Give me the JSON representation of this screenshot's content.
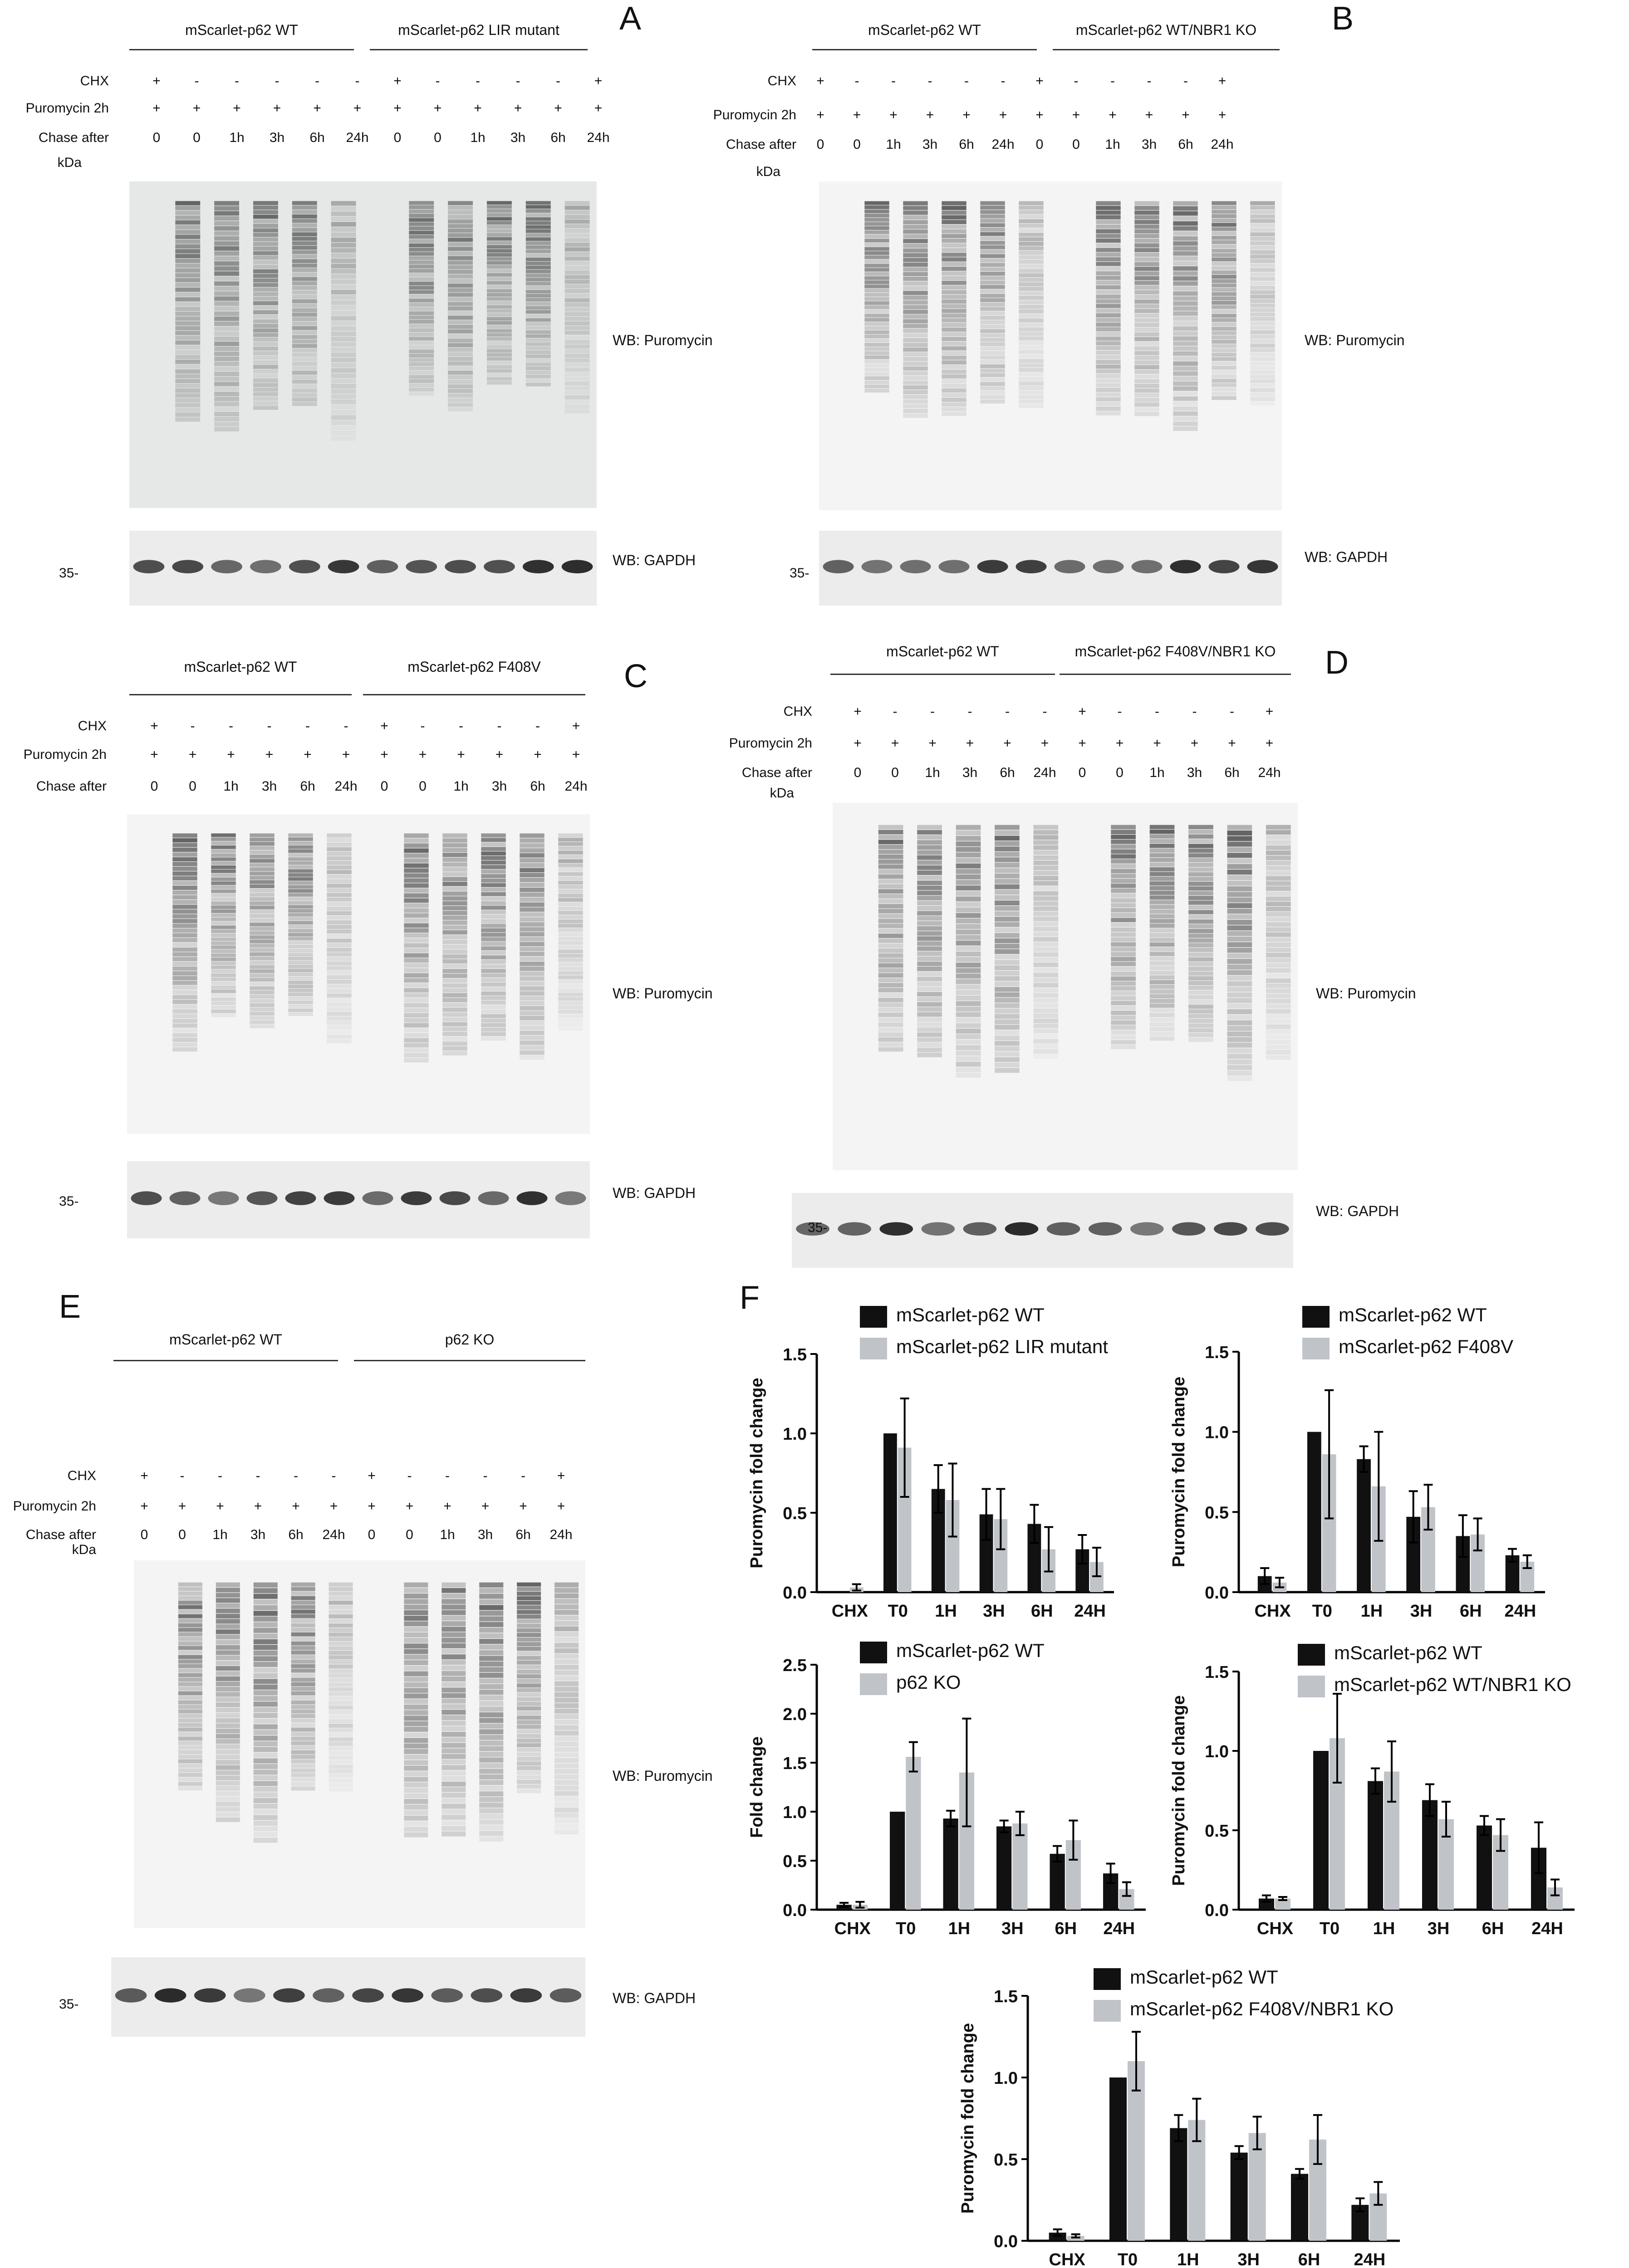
{
  "blot_panels": [
    {
      "letter": "A",
      "groups": [
        "mScarlet-p62 WT",
        "mScarlet-p62 LIR mutant"
      ],
      "rows": [
        {
          "label": "CHX",
          "values": [
            "+",
            "-",
            "-",
            "-",
            "-",
            "-",
            "+",
            "-",
            "-",
            "-",
            "-",
            "+"
          ]
        },
        {
          "label": "Puromycin 2h",
          "values": [
            "+",
            "+",
            "+",
            "+",
            "+",
            "+",
            "+",
            "+",
            "+",
            "+",
            "+",
            "+"
          ]
        },
        {
          "label": "Chase after",
          "values": [
            "0",
            "0",
            "1h",
            "3h",
            "6h",
            "24h",
            "0",
            "0",
            "1h",
            "3h",
            "6h",
            "24h"
          ]
        }
      ],
      "kda_label": "kDa",
      "marker": "35-",
      "wb_main": "WB: Puromycin",
      "wb_loading": "WB: GAPDH"
    },
    {
      "letter": "B",
      "groups": [
        "mScarlet-p62 WT",
        "mScarlet-p62 WT/NBR1 KO"
      ],
      "rows": [
        {
          "label": "CHX",
          "values": [
            "+",
            "-",
            "-",
            "-",
            "-",
            "-",
            "+",
            "-",
            "-",
            "-",
            "-",
            "+"
          ]
        },
        {
          "label": "Puromycin 2h",
          "values": [
            "+",
            "+",
            "+",
            "+",
            "+",
            "+",
            "+",
            "+",
            "+",
            "+",
            "+",
            "+"
          ]
        },
        {
          "label": "Chase after",
          "values": [
            "0",
            "0",
            "1h",
            "3h",
            "6h",
            "24h",
            "0",
            "0",
            "1h",
            "3h",
            "6h",
            "24h"
          ]
        }
      ],
      "kda_label": "kDa",
      "marker": "35-",
      "wb_main": "WB: Puromycin",
      "wb_loading": "WB: GAPDH"
    },
    {
      "letter": "C",
      "groups": [
        "mScarlet-p62 WT",
        "mScarlet-p62 F408V"
      ],
      "rows": [
        {
          "label": "CHX",
          "values": [
            "+",
            "-",
            "-",
            "-",
            "-",
            "-",
            "+",
            "-",
            "-",
            "-",
            "-",
            "+"
          ]
        },
        {
          "label": "Puromycin 2h",
          "values": [
            "+",
            "+",
            "+",
            "+",
            "+",
            "+",
            "+",
            "+",
            "+",
            "+",
            "+",
            "+"
          ]
        },
        {
          "label": "Chase after",
          "values": [
            "0",
            "0",
            "1h",
            "3h",
            "6h",
            "24h",
            "0",
            "0",
            "1h",
            "3h",
            "6h",
            "24h"
          ]
        }
      ],
      "kda_label": "",
      "marker": "35-",
      "wb_main": "WB: Puromycin",
      "wb_loading": "WB: GAPDH"
    },
    {
      "letter": "D",
      "groups": [
        "mScarlet-p62 WT",
        "mScarlet-p62 F408V/NBR1 KO"
      ],
      "rows": [
        {
          "label": "CHX",
          "values": [
            "+",
            "-",
            "-",
            "-",
            "-",
            "-",
            "+",
            "-",
            "-",
            "-",
            "-",
            "+"
          ]
        },
        {
          "label": "Puromycin 2h",
          "values": [
            "+",
            "+",
            "+",
            "+",
            "+",
            "+",
            "+",
            "+",
            "+",
            "+",
            "+",
            "+"
          ]
        },
        {
          "label": "Chase after",
          "values": [
            "0",
            "0",
            "1h",
            "3h",
            "6h",
            "24h",
            "0",
            "0",
            "1h",
            "3h",
            "6h",
            "24h"
          ]
        }
      ],
      "kda_label": "kDa",
      "marker": "35-",
      "wb_main": "WB: Puromycin",
      "wb_loading": "WB: GAPDH"
    },
    {
      "letter": "E",
      "groups": [
        "mScarlet-p62 WT",
        "p62 KO"
      ],
      "rows": [
        {
          "label": "CHX",
          "values": [
            "+",
            "-",
            "-",
            "-",
            "-",
            "-",
            "+",
            "-",
            "-",
            "-",
            "-",
            "+"
          ]
        },
        {
          "label": "Puromycin 2h",
          "values": [
            "+",
            "+",
            "+",
            "+",
            "+",
            "+",
            "+",
            "+",
            "+",
            "+",
            "+",
            "+"
          ]
        },
        {
          "label": "Chase after",
          "values": [
            "0",
            "0",
            "1h",
            "3h",
            "6h",
            "24h",
            "0",
            "0",
            "1h",
            "3h",
            "6h",
            "24h"
          ]
        }
      ],
      "kda_label": "kDa",
      "marker": "35-",
      "wb_main": "WB: Puromycin",
      "wb_loading": "WB: GAPDH"
    }
  ],
  "panel_f_letter": "F",
  "chart_data": [
    {
      "type": "bar",
      "categories": [
        "CHX",
        "T0",
        "1H",
        "3H",
        "6H",
        "24H"
      ],
      "series": [
        {
          "name": "mScarlet-p62 WT",
          "values": [
            0,
            1.0,
            0.65,
            0.49,
            0.43,
            0.27
          ],
          "errors": [
            0,
            0,
            0.15,
            0.16,
            0.12,
            0.09
          ],
          "color": "#111111"
        },
        {
          "name": "mScarlet-p62 LIR mutant",
          "values": [
            0.03,
            0.91,
            0.58,
            0.46,
            0.27,
            0.19
          ],
          "errors": [
            0.02,
            0.31,
            0.23,
            0.19,
            0.14,
            0.09
          ],
          "color": "#c0c4c9"
        }
      ],
      "ylabel": "Puromycin fold change",
      "ylim": [
        0,
        1.5
      ],
      "yticks": [
        "0.0",
        "0.5",
        "1.0",
        "1.5"
      ],
      "legend": "top"
    },
    {
      "type": "bar",
      "categories": [
        "CHX",
        "T0",
        "1H",
        "3H",
        "6H",
        "24H"
      ],
      "series": [
        {
          "name": "mScarlet-p62 WT",
          "values": [
            0.1,
            1.0,
            0.83,
            0.47,
            0.35,
            0.23
          ],
          "errors": [
            0.05,
            0,
            0.08,
            0.16,
            0.13,
            0.04
          ],
          "color": "#111111"
        },
        {
          "name": "mScarlet-p62 F408V",
          "values": [
            0.06,
            0.86,
            0.66,
            0.53,
            0.36,
            0.19
          ],
          "errors": [
            0.03,
            0.4,
            0.34,
            0.14,
            0.1,
            0.04
          ],
          "color": "#c0c4c9"
        }
      ],
      "ylabel": "Puromycin fold change",
      "ylim": [
        0,
        1.5
      ],
      "yticks": [
        "0.0",
        "0.5",
        "1.0",
        "1.5"
      ],
      "legend": "top"
    },
    {
      "type": "bar",
      "categories": [
        "CHX",
        "T0",
        "1H",
        "3H",
        "6H",
        "24H"
      ],
      "series": [
        {
          "name": "mScarlet-p62 WT",
          "values": [
            0.05,
            1.0,
            0.93,
            0.85,
            0.57,
            0.37
          ],
          "errors": [
            0.02,
            0,
            0.08,
            0.06,
            0.08,
            0.1
          ],
          "color": "#111111"
        },
        {
          "name": "p62 KO",
          "values": [
            0.05,
            1.56,
            1.4,
            0.88,
            0.71,
            0.21
          ],
          "errors": [
            0.03,
            0.15,
            0.55,
            0.12,
            0.2,
            0.07
          ],
          "color": "#c0c4c9"
        }
      ],
      "ylabel": "Fold change",
      "ylim": [
        0,
        2.5
      ],
      "yticks": [
        "0.0",
        "0.5",
        "1.0",
        "1.5",
        "2.0",
        "2.5"
      ],
      "legend": "top"
    },
    {
      "type": "bar",
      "categories": [
        "CHX",
        "T0",
        "1H",
        "3H",
        "6H",
        "24H"
      ],
      "series": [
        {
          "name": "mScarlet-p62 WT",
          "values": [
            0.07,
            1.0,
            0.81,
            0.69,
            0.53,
            0.39
          ],
          "errors": [
            0.02,
            0,
            0.08,
            0.1,
            0.06,
            0.16
          ],
          "color": "#111111"
        },
        {
          "name": "mScarlet-p62 WT/NBR1 KO",
          "values": [
            0.07,
            1.08,
            0.87,
            0.57,
            0.47,
            0.14
          ],
          "errors": [
            0.01,
            0.28,
            0.19,
            0.11,
            0.1,
            0.05
          ],
          "color": "#c0c4c9"
        }
      ],
      "ylabel": "Puromycin fold change",
      "ylim": [
        0,
        1.5
      ],
      "yticks": [
        "0.0",
        "0.5",
        "1.0",
        "1.5"
      ],
      "legend": "top"
    },
    {
      "type": "bar",
      "categories": [
        "CHX",
        "T0",
        "1H",
        "3H",
        "6H",
        "24H"
      ],
      "series": [
        {
          "name": "mScarlet-p62 WT",
          "values": [
            0.05,
            1.0,
            0.69,
            0.54,
            0.41,
            0.22
          ],
          "errors": [
            0.02,
            0,
            0.08,
            0.04,
            0.03,
            0.04
          ],
          "color": "#111111"
        },
        {
          "name": "mScarlet-p62 F408V/NBR1 KO",
          "values": [
            0.03,
            1.1,
            0.74,
            0.66,
            0.62,
            0.29
          ],
          "errors": [
            0.01,
            0.18,
            0.13,
            0.1,
            0.15,
            0.07
          ],
          "color": "#c0c4c9"
        }
      ],
      "ylabel": "Puromycin fold change",
      "ylim": [
        0,
        1.5
      ],
      "yticks": [
        "0.0",
        "0.5",
        "1.0",
        "1.5"
      ],
      "legend": "top"
    }
  ]
}
